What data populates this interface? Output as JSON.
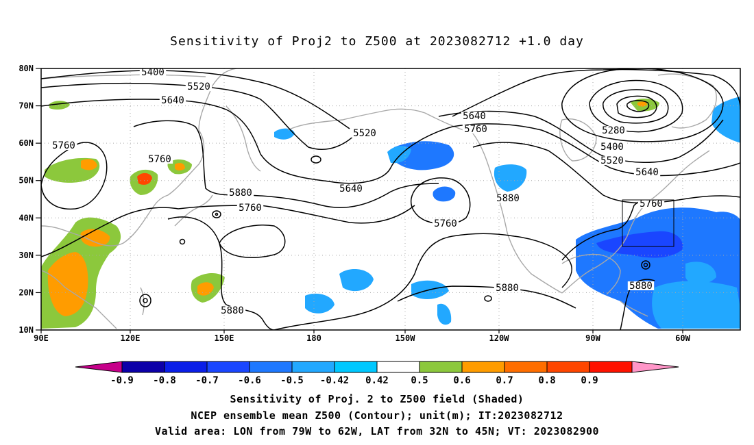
{
  "title": "Sensitivity of Proj2 to Z500 at 2023082712 +1.0 day",
  "lat_labels": [
    "80N",
    "70N",
    "60N",
    "50N",
    "40N",
    "30N",
    "20N",
    "10N"
  ],
  "lon_labels": [
    "90E",
    "120E",
    "150E",
    "180",
    "150W",
    "120W",
    "90W",
    "60W"
  ],
  "contour_labels": [
    "5400",
    "5520",
    "5640",
    "5760",
    "5520",
    "5640",
    "5760",
    "5760",
    "5280",
    "5400",
    "5520",
    "5640",
    "5760",
    "5880",
    "5640",
    "5760",
    "5880",
    "5760",
    "5880",
    "5880",
    "5880"
  ],
  "colorbar": {
    "tick_labels": [
      "-0.9",
      "-0.8",
      "-0.7",
      "-0.6",
      "-0.5",
      "-0.42",
      "0.42",
      "0.5",
      "0.6",
      "0.7",
      "0.8",
      "0.9"
    ],
    "colors": [
      "#c6008a",
      "#0c00a8",
      "#0a1ee8",
      "#1a46ff",
      "#1e78ff",
      "#22a8ff",
      "#00c8ff",
      "#ffffff",
      "#8cc83c",
      "#ff9c00",
      "#ff6e00",
      "#ff4600",
      "#ff1200",
      "#ff96c8"
    ]
  },
  "footer": {
    "line1": "Sensitivity of Proj. 2 to Z500 field (Shaded)",
    "line2": "NCEP ensemble mean Z500 (Contour); unit(m); IT:2023082712",
    "line3": "Valid area: LON from 79W to 62W, LAT from 32N to 45N; VT: 2023082900"
  },
  "valid_area": {
    "lon": [
      -79,
      -62
    ],
    "lat": [
      32,
      45
    ]
  }
}
